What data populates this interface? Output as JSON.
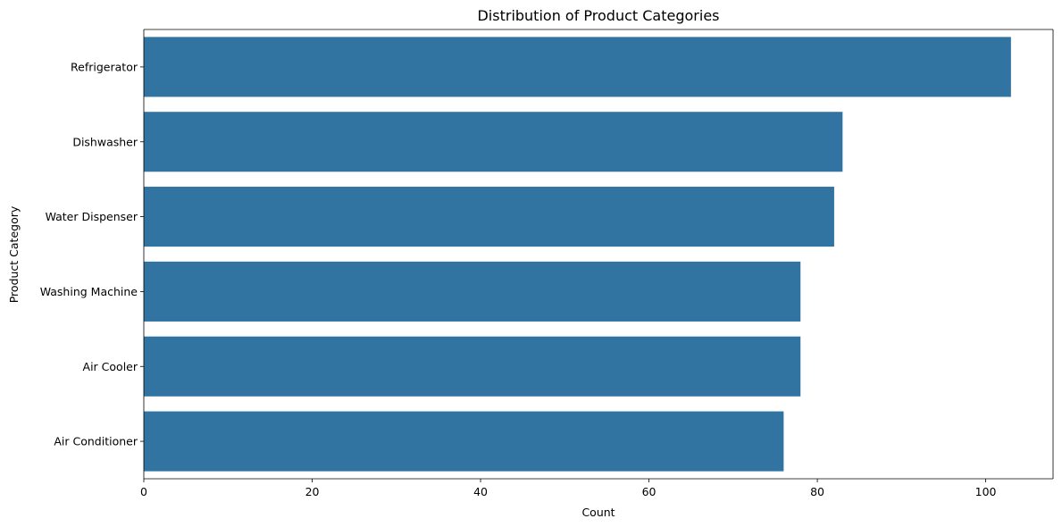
{
  "chart_data": {
    "type": "bar",
    "orientation": "horizontal",
    "title": "Distribution of Product Categories",
    "xlabel": "Count",
    "ylabel": "Product Category",
    "categories": [
      "Refrigerator",
      "Dishwasher",
      "Water Dispenser",
      "Washing Machine",
      "Air Cooler",
      "Air Conditioner"
    ],
    "values": [
      103,
      83,
      82,
      78,
      78,
      76
    ],
    "xlim": [
      0,
      108
    ],
    "xticks": [
      0,
      20,
      40,
      60,
      80,
      100
    ],
    "grid": false,
    "bar_color": "#3274a1"
  }
}
